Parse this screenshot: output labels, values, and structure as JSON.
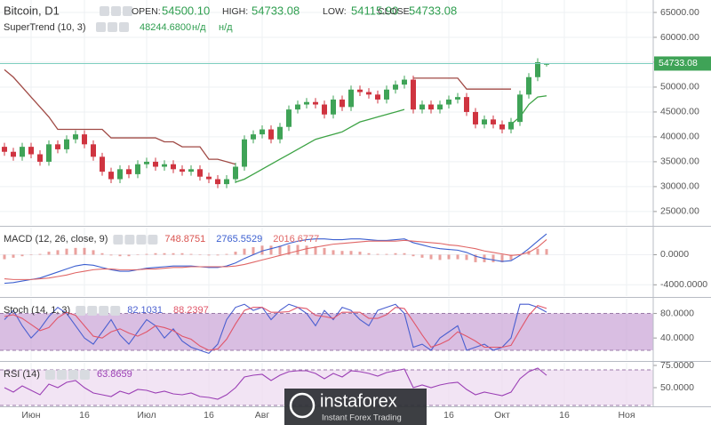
{
  "chart_data": [
    {
      "type": "candlestick",
      "title": "Bitcoin, D1",
      "labels": {
        "open": "OPEN:",
        "high": "HIGH:",
        "low": "LOW:",
        "close": "CLOSE:"
      },
      "last_labels": {
        "open": "54500.10",
        "high": "54733.08",
        "low": "54115.90",
        "close": "54733.08"
      },
      "categories": [
        null,
        null,
        null,
        "Июн",
        null,
        null,
        null,
        null,
        null,
        "16",
        null,
        null,
        null,
        null,
        null,
        null,
        "Июл",
        null,
        null,
        null,
        null,
        null,
        null,
        "16",
        null,
        null,
        null,
        null,
        null,
        "Авг",
        null,
        null,
        null,
        null,
        null,
        null,
        null,
        null,
        null,
        null,
        null,
        null,
        null,
        null,
        null,
        null,
        null,
        null,
        null,
        null,
        "16",
        null,
        null,
        null,
        null,
        null,
        "Окт",
        null,
        null,
        null,
        null,
        null,
        null,
        "16",
        null,
        null,
        null,
        null,
        null,
        null,
        "Ноя",
        null
      ],
      "open": [
        38000,
        37000,
        36000,
        38000,
        36500,
        35000,
        38500,
        37500,
        39500,
        40500,
        38500,
        36000,
        33000,
        31500,
        33500,
        32500,
        34500,
        35000,
        34000,
        34500,
        33500,
        33000,
        33500,
        32000,
        31500,
        30500,
        31500,
        34000,
        39500,
        40500,
        41500,
        39500,
        42000,
        45500,
        46500,
        47000,
        46500,
        44500,
        47500,
        46000,
        49500,
        49000,
        48500,
        47500,
        49500,
        50500,
        51500,
        45500,
        46500,
        45500,
        46500,
        47500,
        48000,
        45000,
        42500,
        43500,
        42500,
        41500,
        43000,
        48500,
        52000,
        54500.1,
        null,
        null,
        null,
        null,
        null,
        null,
        null,
        null,
        null,
        null
      ],
      "high": [
        38800,
        37800,
        38800,
        38800,
        37300,
        39300,
        39300,
        40300,
        41300,
        41300,
        39300,
        36800,
        33800,
        34300,
        34300,
        35300,
        35800,
        35800,
        35300,
        35300,
        34300,
        34300,
        34300,
        32800,
        32300,
        32300,
        34800,
        40300,
        41300,
        42300,
        42300,
        42800,
        46300,
        47300,
        47800,
        47800,
        47300,
        48300,
        48300,
        50300,
        50300,
        49800,
        49300,
        50300,
        51300,
        52300,
        52300,
        47300,
        47300,
        47300,
        48300,
        48800,
        48800,
        45800,
        44300,
        44300,
        43300,
        43800,
        49300,
        52800,
        55800,
        54733.08,
        null,
        null,
        null,
        null,
        null,
        null,
        null,
        null,
        null,
        null
      ],
      "low": [
        36200,
        35200,
        35200,
        35700,
        34200,
        34200,
        36700,
        36700,
        38700,
        37700,
        35200,
        32200,
        30700,
        30700,
        31700,
        31700,
        33700,
        33200,
        33200,
        32700,
        32200,
        32200,
        31200,
        30700,
        29700,
        29700,
        30700,
        33200,
        38700,
        39700,
        38700,
        38700,
        41200,
        44700,
        45700,
        45700,
        43700,
        43700,
        45200,
        45200,
        48200,
        47700,
        46700,
        46700,
        48700,
        49700,
        44700,
        44700,
        44700,
        44700,
        45700,
        46700,
        44200,
        41700,
        41700,
        41700,
        40700,
        40700,
        42200,
        47700,
        51200,
        54115.9,
        null,
        null,
        null,
        null,
        null,
        null,
        null,
        null,
        null,
        null
      ],
      "close": [
        37000,
        36000,
        38000,
        36500,
        35000,
        38500,
        37500,
        39500,
        40500,
        38500,
        36000,
        33000,
        31500,
        33500,
        32500,
        34500,
        35000,
        34000,
        34500,
        33500,
        33000,
        33500,
        32000,
        31500,
        30500,
        31500,
        34000,
        39500,
        40500,
        41500,
        39500,
        42000,
        45500,
        46500,
        47000,
        46500,
        44500,
        47500,
        46000,
        49500,
        49000,
        48500,
        47500,
        49500,
        50500,
        51500,
        45500,
        46500,
        45500,
        46500,
        47500,
        48000,
        45000,
        42500,
        43500,
        42500,
        41500,
        43000,
        48500,
        52000,
        55000,
        54733.08,
        null,
        null,
        null,
        null,
        null,
        null,
        null,
        null,
        null,
        null
      ],
      "up_color": "#3fa357",
      "down_color": "#cf3440",
      "ylim": [
        22300,
        67500
      ],
      "yticks": [
        {
          "value": 65000,
          "label": "65000.00"
        },
        {
          "value": 60000,
          "label": "60000.00"
        },
        {
          "value": 55000,
          "label": "55000.00"
        },
        {
          "value": 50000,
          "label": "50000.00"
        },
        {
          "value": 45000,
          "label": "45000.00"
        },
        {
          "value": 40000,
          "label": "40000.00"
        },
        {
          "value": 35000,
          "label": "35000.00"
        },
        {
          "value": 30000,
          "label": "30000.00"
        },
        {
          "value": 25000,
          "label": "25000.00"
        }
      ],
      "grid": true,
      "supertrend": {
        "name": "SuperTrend (10, 3)",
        "last_label": "48244.6800",
        "na": [
          "н/д",
          "н/д"
        ],
        "upper": [
          53500,
          52000,
          50000,
          48000,
          46000,
          44000,
          41500,
          41500,
          41500,
          41500,
          41500,
          41500,
          39800,
          39800,
          39800,
          39800,
          39800,
          39800,
          39000,
          39000,
          38000,
          38000,
          38000,
          35500,
          35500,
          35000,
          34500,
          null,
          null,
          null,
          null,
          null,
          null,
          null,
          null,
          null,
          null,
          null,
          null,
          null,
          null,
          null,
          null,
          null,
          null,
          null,
          51800,
          51800,
          51800,
          51800,
          51800,
          51800,
          49600,
          49600,
          49600,
          49600,
          49600,
          49600,
          null,
          null,
          null,
          null,
          null,
          null,
          null,
          null,
          null,
          null,
          null,
          null,
          null,
          null
        ],
        "lower": [
          null,
          null,
          null,
          null,
          null,
          null,
          null,
          null,
          null,
          null,
          null,
          null,
          null,
          null,
          null,
          null,
          null,
          null,
          null,
          null,
          null,
          null,
          null,
          null,
          null,
          null,
          30900,
          31500,
          32500,
          33500,
          34500,
          35500,
          36500,
          37500,
          38500,
          39500,
          40000,
          40500,
          41000,
          42000,
          43000,
          43500,
          44000,
          44500,
          45000,
          45500,
          null,
          null,
          null,
          null,
          null,
          null,
          null,
          null,
          null,
          null,
          null,
          42500,
          44000,
          46500,
          48000,
          48244.68,
          null,
          null,
          null,
          null,
          null,
          null,
          null,
          null,
          null,
          null
        ],
        "upper_color": "#a04a45",
        "lower_color": "#3da345"
      }
    },
    {
      "type": "line",
      "title": "MACD (12, 26, close, 9)",
      "ylim": [
        -5500,
        3600
      ],
      "yticks": [
        {
          "value": 0,
          "label": "0.0000"
        },
        {
          "value": -4000,
          "label": "-4000.0000"
        }
      ],
      "grid": true,
      "series": [
        {
          "kind": "bar",
          "color": "#d9534f",
          "values": [
            -600,
            -400,
            -200,
            0,
            100,
            400,
            600,
            800,
            900,
            900,
            600,
            200,
            -100,
            -200,
            -200,
            0,
            100,
            200,
            200,
            200,
            200,
            100,
            0,
            -100,
            -100,
            100,
            400,
            800,
            1000,
            1200,
            1200,
            1200,
            1300,
            1300,
            1200,
            1100,
            900,
            600,
            500,
            500,
            400,
            200,
            100,
            100,
            200,
            200,
            -200,
            -400,
            -600,
            -700,
            -600,
            -600,
            -700,
            -1000,
            -1000,
            -1000,
            -1000,
            -700,
            -100,
            500,
            800,
            748.8751,
            null,
            null,
            null,
            null,
            null,
            null,
            null,
            null,
            null,
            null
          ]
        },
        {
          "color": "#3b5fd0",
          "values": [
            -3800,
            -3700,
            -3500,
            -3300,
            -3100,
            -2700,
            -2300,
            -1900,
            -1500,
            -1300,
            -1400,
            -1700,
            -2000,
            -2200,
            -2200,
            -2000,
            -1800,
            -1700,
            -1600,
            -1500,
            -1500,
            -1500,
            -1600,
            -1700,
            -1700,
            -1500,
            -1100,
            -500,
            0,
            500,
            800,
            1100,
            1500,
            1800,
            2000,
            2100,
            2100,
            2000,
            2000,
            2100,
            2100,
            2000,
            1900,
            1900,
            2000,
            2100,
            1600,
            1300,
            1000,
            800,
            700,
            600,
            300,
            -200,
            -500,
            -700,
            -900,
            -800,
            -100,
            800,
            1800,
            2765.5529,
            null,
            null,
            null,
            null,
            null,
            null,
            null,
            null,
            null,
            null
          ]
        },
        {
          "color": "#e06666",
          "values": [
            -3200,
            -3300,
            -3300,
            -3300,
            -3200,
            -3100,
            -2900,
            -2700,
            -2400,
            -2200,
            -2000,
            -1900,
            -1900,
            -2000,
            -2000,
            -2000,
            -1900,
            -1900,
            -1800,
            -1700,
            -1700,
            -1600,
            -1600,
            -1600,
            -1600,
            -1600,
            -1500,
            -1300,
            -1000,
            -700,
            -400,
            -100,
            200,
            500,
            800,
            1000,
            1200,
            1400,
            1500,
            1600,
            1700,
            1800,
            1800,
            1800,
            1800,
            1900,
            1800,
            1700,
            1600,
            1500,
            1300,
            1200,
            1000,
            800,
            500,
            300,
            100,
            -100,
            0,
            300,
            1000,
            2016.6777,
            null,
            null,
            null,
            null,
            null,
            null,
            null,
            null,
            null,
            null
          ]
        }
      ]
    },
    {
      "type": "line",
      "title": "Stoch (14, 1, 3)",
      "ylim": [
        4,
        104
      ],
      "yticks": [
        {
          "value": 80,
          "label": "80.0000"
        },
        {
          "value": 40,
          "label": "40.0000"
        }
      ],
      "grid": true,
      "band": [
        20,
        80
      ],
      "band_color": "#c9a3d6",
      "series": [
        {
          "color": "#4a5fd0",
          "values": [
            70,
            85,
            60,
            40,
            55,
            75,
            90,
            80,
            60,
            40,
            30,
            50,
            70,
            45,
            30,
            50,
            70,
            60,
            40,
            55,
            35,
            25,
            20,
            15,
            30,
            70,
            90,
            95,
            85,
            90,
            70,
            85,
            95,
            90,
            80,
            60,
            85,
            70,
            90,
            85,
            70,
            60,
            85,
            90,
            95,
            80,
            25,
            30,
            20,
            40,
            50,
            60,
            20,
            25,
            30,
            20,
            25,
            40,
            95,
            95,
            90,
            82.1031,
            null,
            null,
            null,
            null,
            null,
            null,
            null,
            null,
            null,
            null
          ]
        },
        {
          "color": "#e0566a",
          "values": [
            75,
            78,
            72,
            62,
            52,
            57,
            73,
            82,
            77,
            60,
            43,
            40,
            50,
            55,
            48,
            43,
            50,
            60,
            57,
            52,
            43,
            38,
            27,
            20,
            22,
            38,
            63,
            85,
            90,
            90,
            82,
            82,
            83,
            90,
            88,
            77,
            75,
            72,
            82,
            82,
            82,
            72,
            72,
            78,
            90,
            88,
            67,
            45,
            25,
            30,
            37,
            50,
            43,
            35,
            25,
            25,
            25,
            28,
            53,
            77,
            93,
            88.2397,
            null,
            null,
            null,
            null,
            null,
            null,
            null,
            null,
            null,
            null
          ]
        }
      ]
    },
    {
      "type": "line",
      "title": "RSI (14)",
      "ylim": [
        30,
        78
      ],
      "yticks": [
        {
          "value": 75,
          "label": "75.0000"
        },
        {
          "value": 50,
          "label": "50.0000"
        }
      ],
      "grid": true,
      "band": [
        30,
        70
      ],
      "band_color": "#ecd9f0",
      "series": [
        {
          "color": "#9b3fb5",
          "values": [
            50,
            45,
            52,
            47,
            42,
            54,
            50,
            56,
            58,
            50,
            44,
            42,
            40,
            46,
            43,
            48,
            47,
            44,
            46,
            43,
            42,
            44,
            40,
            39,
            37,
            42,
            50,
            62,
            64,
            65,
            58,
            64,
            68,
            69,
            69,
            66,
            60,
            66,
            62,
            69,
            68,
            66,
            63,
            67,
            69,
            71,
            50,
            53,
            50,
            53,
            55,
            56,
            48,
            42,
            45,
            43,
            41,
            45,
            60,
            68,
            72,
            63.8659,
            null,
            null,
            null,
            null,
            null,
            null,
            null,
            null,
            null,
            null
          ]
        }
      ]
    }
  ],
  "watermark": {
    "title": "instaforex",
    "subtitle": "Instant Forex Trading"
  }
}
